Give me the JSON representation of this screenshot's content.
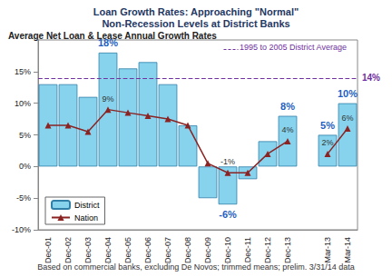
{
  "chart_data": {
    "type": "bar",
    "title": "Loan Growth Rates: Approaching \"Normal\"\nNon-Recession Levels at District Banks",
    "subtitle": "Average Net Loan & Lease Annual Growth Rates",
    "footnote": "Based on commercial banks, excluding De Novos; trimmed means; prelim. 3/31/14 data",
    "categories": [
      "Dec-01",
      "Dec-02",
      "Dec-03",
      "Dec-04",
      "Dec-05",
      "Dec-06",
      "Dec-07",
      "Dec-08",
      "Dec-09",
      "Dec-10",
      "Dec-11",
      "Dec-12",
      "Dec-13",
      null,
      "Mar-13",
      "Mar-14"
    ],
    "series": [
      {
        "name": "District",
        "type": "bar",
        "color": "#87d3ee",
        "values": [
          13,
          13,
          11,
          18,
          15.5,
          16.5,
          13,
          6.5,
          -5,
          -6,
          -2,
          4,
          8,
          null,
          5,
          10
        ],
        "value_labels": [
          null,
          null,
          null,
          "18%",
          null,
          null,
          null,
          null,
          null,
          "-6%",
          null,
          null,
          "8%",
          null,
          "5%",
          "10%"
        ]
      },
      {
        "name": "Nation",
        "type": "line",
        "color": "#8b2323",
        "marker": "triangle",
        "line_style": "solid",
        "values": [
          6.5,
          6.5,
          5.5,
          9,
          8.5,
          8,
          7.5,
          6.5,
          0.5,
          -1,
          -1,
          2,
          4,
          null,
          2,
          6
        ],
        "value_labels": [
          null,
          null,
          null,
          "9%",
          null,
          null,
          null,
          null,
          null,
          "-1%",
          null,
          null,
          "4%",
          null,
          "2%",
          "6%"
        ]
      }
    ],
    "reference_lines": [
      {
        "value": 14,
        "label": "14%",
        "text": "1995 to 2005 District Average",
        "color": "#7030a0",
        "line_style": "dashed"
      }
    ],
    "ylim": [
      -10,
      20
    ],
    "yticks": [
      {
        "value": -10,
        "label": "-10%"
      },
      {
        "value": -5,
        "label": "-5%"
      },
      {
        "value": 0,
        "label": "0%"
      },
      {
        "value": 5,
        "label": "5%"
      },
      {
        "value": 10,
        "label": "10%"
      },
      {
        "value": 15,
        "label": "15%"
      }
    ],
    "grid": false,
    "legend": "lower left",
    "data_labels": true
  }
}
